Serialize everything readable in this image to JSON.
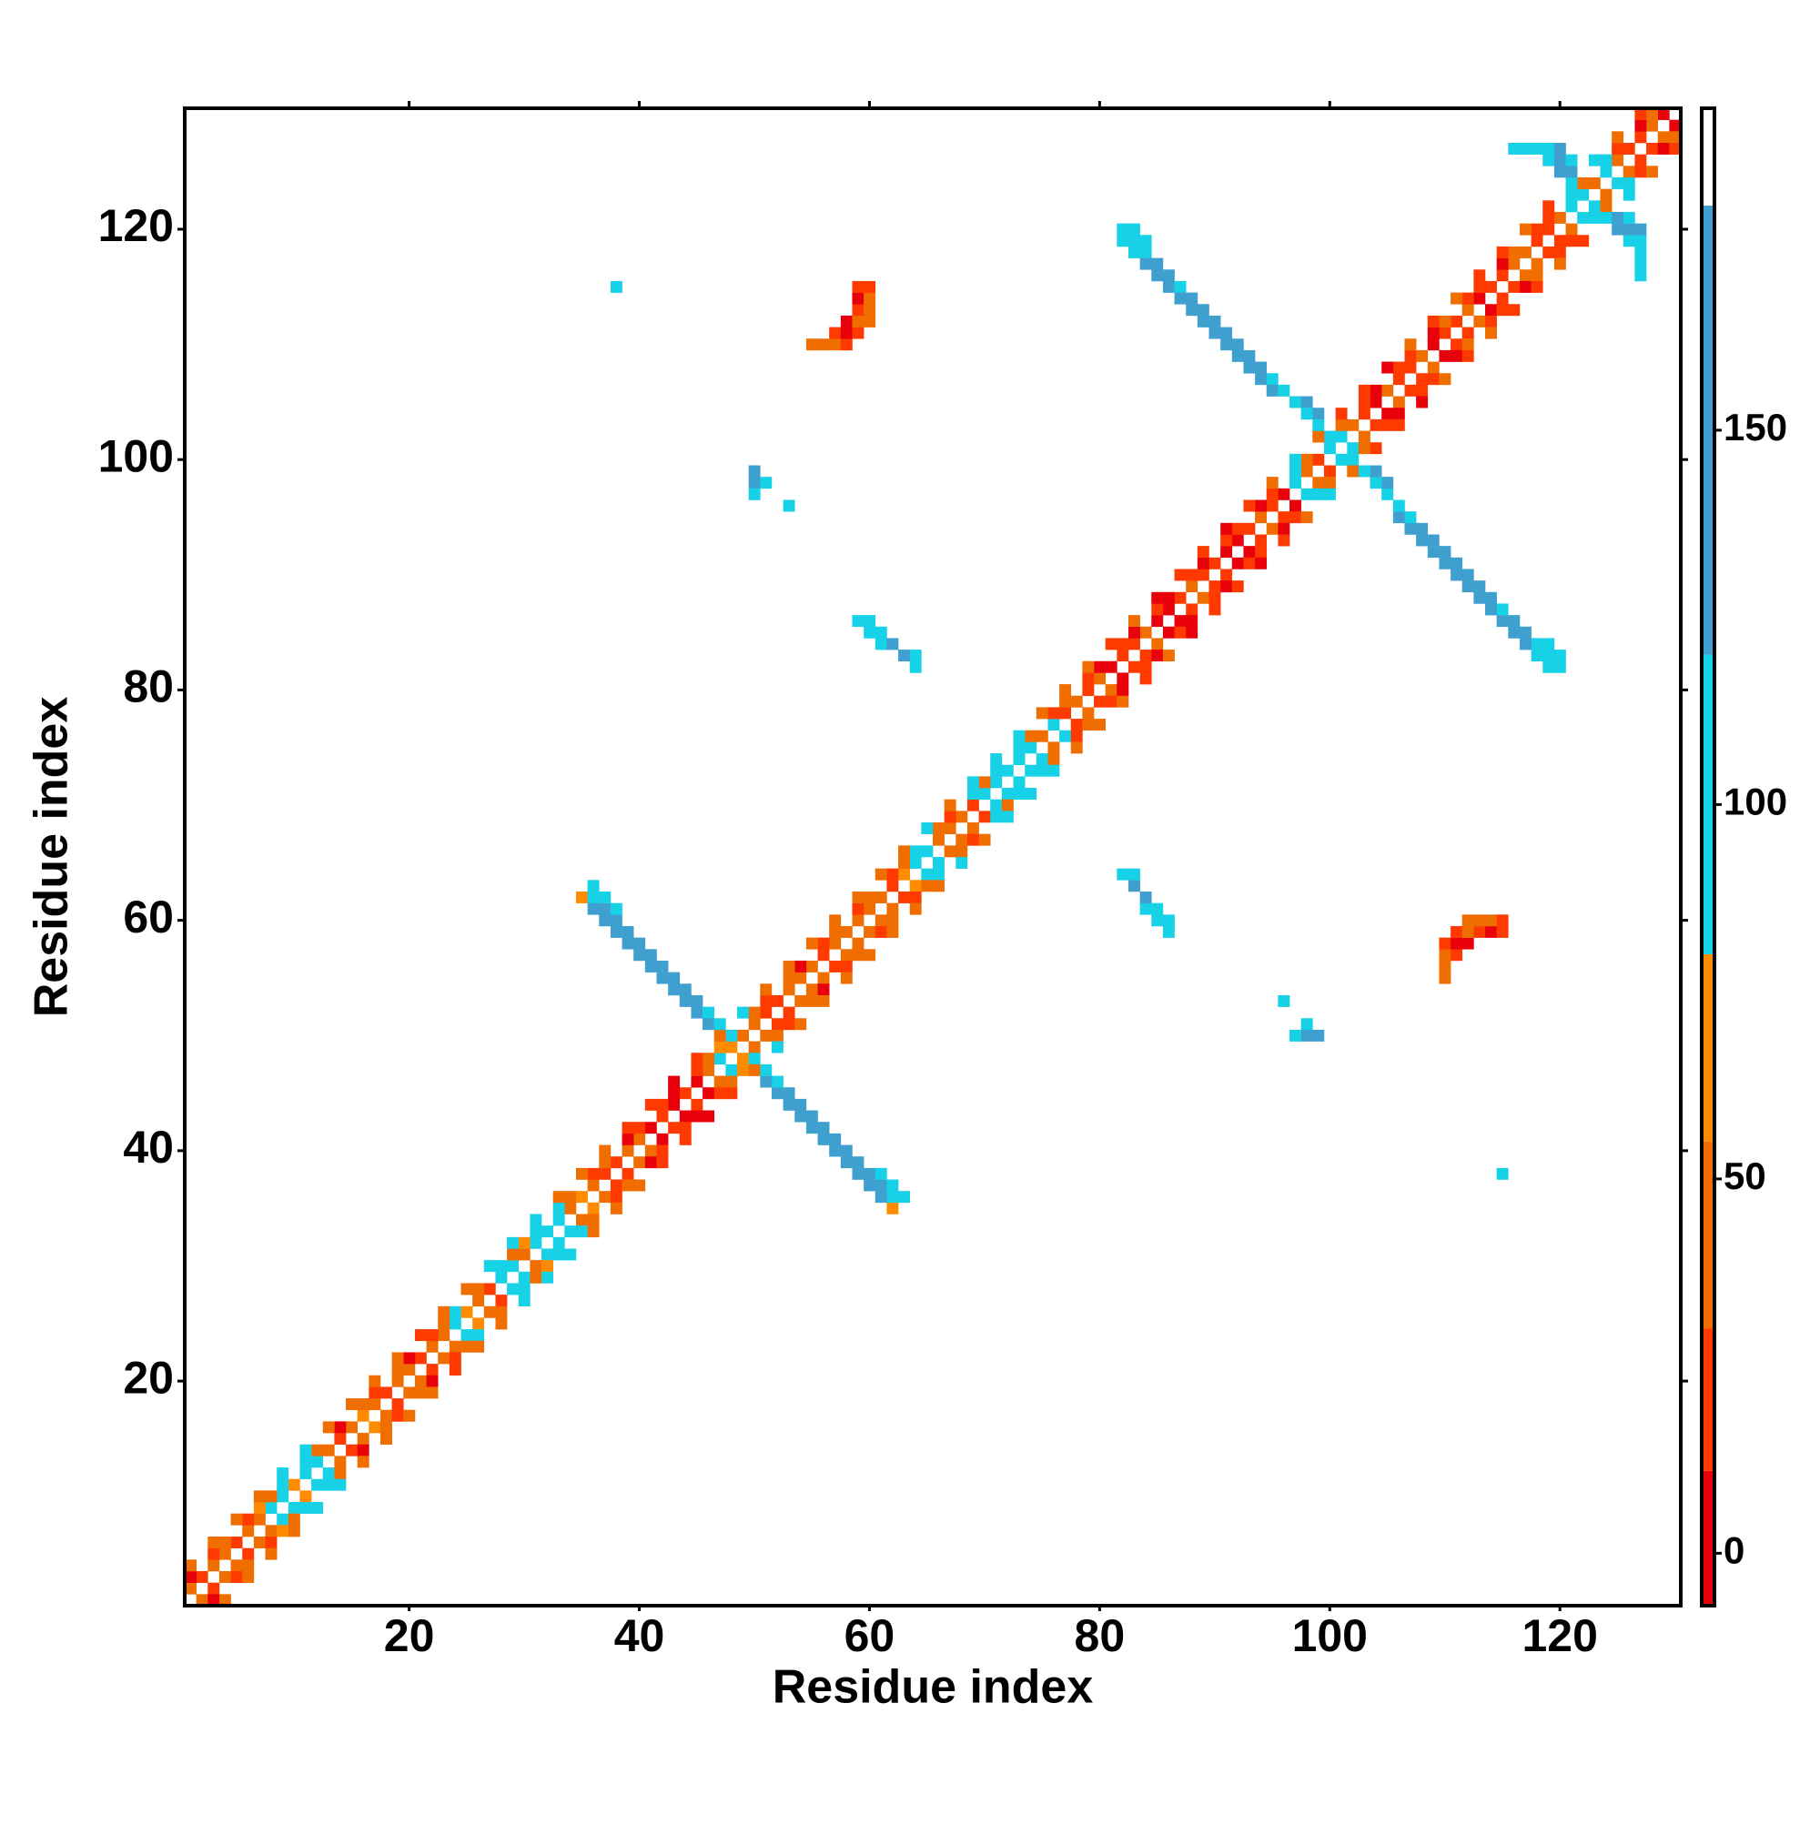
{
  "chart_data": {
    "type": "heatmap",
    "xlabel": "Residue index",
    "ylabel": "Residue index",
    "xlim": [
      0.5,
      130.5
    ],
    "ylim": [
      0.5,
      130.5
    ],
    "xticks": [
      20,
      40,
      60,
      80,
      100,
      120
    ],
    "yticks": [
      20,
      40,
      60,
      80,
      100,
      120
    ],
    "symmetric": true,
    "diagonals": [
      {
        "offset": 1,
        "values": [
          40,
          15,
          42,
          38,
          12,
          45,
          40,
          95,
          92,
          60,
          98,
          94,
          40,
          14,
          42,
          60,
          38,
          12,
          40,
          45,
          15,
          42,
          40,
          95,
          60,
          40,
          14,
          92,
          96,
          40,
          98,
          94,
          95,
          40,
          60,
          38,
          15,
          12,
          40,
          42,
          10,
          12,
          8,
          14,
          10,
          40,
          95,
          60,
          45,
          40,
          14,
          12,
          40,
          38,
          42,
          15,
          40,
          42,
          38,
          45,
          40,
          15,
          60,
          96,
          92,
          40,
          42,
          38,
          12,
          95,
          92,
          96,
          94,
          98,
          40,
          95,
          14,
          40,
          12,
          38,
          10,
          14,
          12,
          40,
          8,
          10,
          12,
          40,
          14,
          12,
          10,
          8,
          12,
          40,
          14,
          10,
          95,
          40,
          12,
          98,
          96,
          40,
          12,
          10,
          40,
          14,
          12,
          40,
          10,
          14,
          12,
          40,
          10,
          14,
          12,
          42,
          40,
          12,
          14,
          40,
          95,
          92,
          40,
          96,
          40,
          14,
          12,
          40,
          10
        ]
      },
      {
        "offset": 2,
        "values": [
          10,
          null,
          12,
          40,
          null,
          14,
          60,
          40,
          96,
          null,
          92,
          40,
          null,
          10,
          null,
          40,
          12,
          null,
          42,
          10,
          null,
          12,
          40,
          98,
          null,
          40,
          null,
          94,
          40,
          60,
          96,
          null,
          92,
          40,
          null,
          12,
          40,
          null,
          10,
          14,
          null,
          12,
          10,
          null,
          14,
          40,
          60,
          95,
          null,
          40,
          12,
          null,
          40,
          10,
          null,
          14,
          40,
          null,
          12,
          40,
          null,
          14,
          40,
          92,
          null,
          40,
          12,
          null,
          96,
          40,
          94,
          null,
          98,
          40,
          null,
          12,
          40,
          null,
          14,
          10,
          null,
          12,
          10,
          null,
          14,
          8,
          null,
          12,
          10,
          null,
          14,
          12,
          null,
          10,
          12,
          null,
          96,
          40,
          null,
          94,
          40,
          null,
          12,
          10,
          null,
          14,
          12,
          null,
          10,
          40,
          null,
          12,
          14,
          null,
          10,
          40,
          null,
          12,
          14,
          null,
          96,
          40,
          null,
          94,
          12,
          null,
          10,
          40
        ]
      },
      {
        "offset": 3,
        "values": [
          40,
          null,
          38,
          null,
          42,
          null,
          40,
          null,
          94,
          null,
          96,
          null,
          40,
          null,
          38,
          null,
          42,
          null,
          40,
          null,
          12,
          null,
          40,
          null,
          38,
          null,
          92,
          null,
          94,
          null,
          98,
          null,
          40,
          null,
          42,
          null,
          40,
          null,
          12,
          null,
          14,
          null,
          10,
          null,
          12,
          null,
          40,
          null,
          95,
          null,
          40,
          null,
          42,
          null,
          38,
          null,
          40,
          null,
          42,
          null,
          40,
          null,
          38,
          null,
          96,
          null,
          40,
          null,
          94,
          null,
          96,
          null,
          92,
          null,
          40,
          null,
          42,
          null,
          38,
          null,
          12,
          null,
          40,
          null,
          10,
          null,
          12,
          null,
          14,
          null,
          10,
          null,
          12,
          null,
          40,
          null,
          96,
          null,
          40,
          null,
          14,
          null,
          12,
          null,
          10,
          null,
          40,
          null,
          12,
          null,
          40,
          null,
          14,
          null,
          12,
          null,
          40,
          null,
          14,
          null,
          92,
          null,
          96,
          null,
          40,
          null,
          12
        ]
      }
    ],
    "cells": [
      [
        35,
        62,
        60
      ],
      [
        36,
        62,
        110
      ],
      [
        36,
        61,
        150
      ],
      [
        37,
        61,
        150
      ],
      [
        37,
        60,
        150
      ],
      [
        38,
        60,
        155
      ],
      [
        38,
        59,
        150
      ],
      [
        39,
        59,
        155
      ],
      [
        39,
        58,
        150
      ],
      [
        40,
        58,
        155
      ],
      [
        40,
        57,
        150
      ],
      [
        41,
        57,
        155
      ],
      [
        41,
        56,
        150
      ],
      [
        42,
        56,
        155
      ],
      [
        42,
        55,
        150
      ],
      [
        43,
        55,
        155
      ],
      [
        43,
        54,
        150
      ],
      [
        44,
        54,
        155
      ],
      [
        44,
        53,
        150
      ],
      [
        45,
        53,
        155
      ],
      [
        45,
        52,
        150
      ],
      [
        46,
        52,
        110
      ],
      [
        46,
        51,
        150
      ],
      [
        47,
        51,
        110
      ],
      [
        36,
        63,
        110
      ],
      [
        37,
        62,
        110
      ],
      [
        38,
        61,
        115
      ],
      [
        82,
        120,
        110
      ],
      [
        82,
        119,
        110
      ],
      [
        83,
        119,
        110
      ],
      [
        83,
        118,
        110
      ],
      [
        84,
        118,
        110
      ],
      [
        84,
        117,
        150
      ],
      [
        85,
        117,
        150
      ],
      [
        85,
        116,
        155
      ],
      [
        86,
        116,
        150
      ],
      [
        86,
        115,
        155
      ],
      [
        87,
        115,
        110
      ],
      [
        87,
        114,
        150
      ],
      [
        88,
        114,
        155
      ],
      [
        88,
        113,
        150
      ],
      [
        89,
        113,
        155
      ],
      [
        89,
        112,
        150
      ],
      [
        90,
        112,
        155
      ],
      [
        90,
        111,
        150
      ],
      [
        91,
        111,
        155
      ],
      [
        91,
        110,
        150
      ],
      [
        92,
        110,
        155
      ],
      [
        92,
        109,
        150
      ],
      [
        93,
        109,
        155
      ],
      [
        93,
        108,
        150
      ],
      [
        94,
        108,
        155
      ],
      [
        94,
        107,
        150
      ],
      [
        95,
        107,
        110
      ],
      [
        95,
        106,
        150
      ],
      [
        96,
        106,
        110
      ],
      [
        97,
        105,
        110
      ],
      [
        98,
        105,
        150
      ],
      [
        98,
        104,
        110
      ],
      [
        99,
        104,
        150
      ],
      [
        99,
        103,
        110
      ],
      [
        83,
        120,
        110
      ],
      [
        84,
        119,
        115
      ],
      [
        116,
        127,
        110
      ],
      [
        117,
        127,
        110
      ],
      [
        118,
        127,
        110
      ],
      [
        119,
        126,
        110
      ],
      [
        120,
        126,
        150
      ],
      [
        120,
        125,
        150
      ],
      [
        121,
        125,
        150
      ],
      [
        119,
        127,
        110
      ],
      [
        120,
        127,
        150
      ],
      [
        121,
        126,
        110
      ],
      [
        56,
        110,
        40
      ],
      [
        57,
        110,
        40
      ],
      [
        58,
        110,
        12
      ],
      [
        55,
        110,
        40
      ],
      [
        57,
        111,
        12
      ],
      [
        58,
        111,
        10
      ],
      [
        59,
        111,
        12
      ],
      [
        58,
        112,
        10
      ],
      [
        59,
        112,
        40
      ],
      [
        60,
        112,
        40
      ],
      [
        59,
        113,
        12
      ],
      [
        60,
        113,
        40
      ],
      [
        59,
        114,
        10
      ],
      [
        60,
        114,
        40
      ],
      [
        60,
        115,
        12
      ],
      [
        59,
        115,
        12
      ],
      [
        59,
        86,
        110
      ],
      [
        60,
        86,
        110
      ],
      [
        60,
        85,
        110
      ],
      [
        61,
        84,
        110
      ],
      [
        62,
        84,
        150
      ],
      [
        63,
        83,
        150
      ],
      [
        64,
        83,
        110
      ],
      [
        64,
        82,
        110
      ],
      [
        61,
        85,
        110
      ],
      [
        50,
        99,
        150
      ],
      [
        50,
        98,
        150
      ],
      [
        51,
        98,
        110
      ],
      [
        50,
        97,
        110
      ],
      [
        53,
        96,
        110
      ],
      [
        38,
        115,
        110
      ]
    ],
    "colorbar": {
      "bounds": [
        -7,
        11,
        30,
        55,
        80,
        120,
        180,
        193
      ],
      "colors": [
        "#e8000b",
        "#ff3a00",
        "#f06d00",
        "#ff8c00",
        "#17d2e6",
        "#3fa0d0",
        "#ffffff"
      ],
      "ticks": [
        0,
        50,
        100,
        150
      ]
    }
  }
}
